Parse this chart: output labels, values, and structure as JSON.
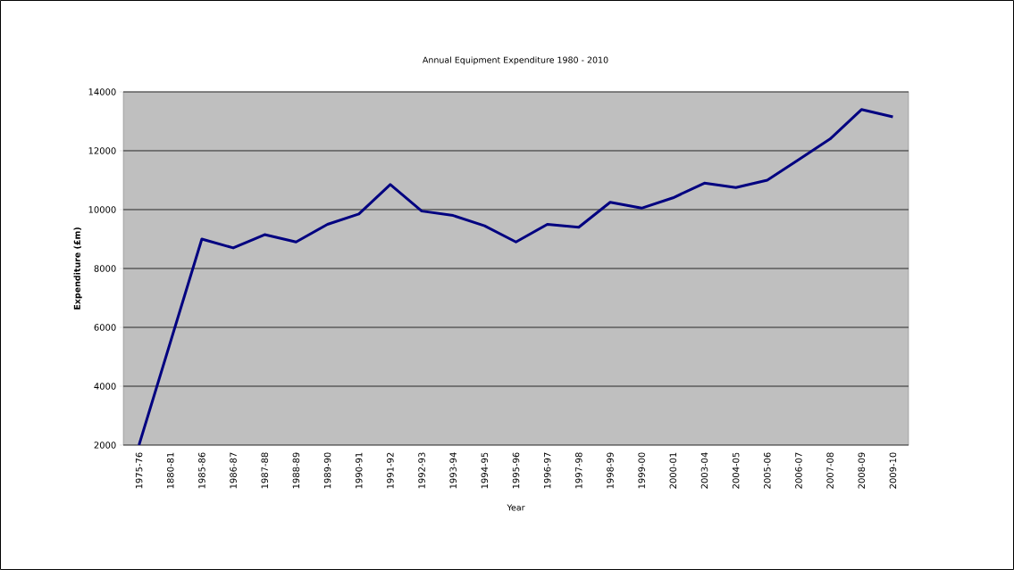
{
  "chart_data": {
    "type": "line",
    "title": "Annual Equipment Expenditure 1980 - 2010",
    "xlabel": "Year",
    "ylabel": "Expenditure (£m)",
    "categories": [
      "1975-76",
      "1880-81",
      "1985-86",
      "1986-87",
      "1987-88",
      "1988-89",
      "1989-90",
      "1990-91",
      "1991-92",
      "1992-93",
      "1993-94",
      "1994-95",
      "1995-96",
      "1996-97",
      "1997-98",
      "1998-99",
      "1999-00",
      "2000-01",
      "2003-04",
      "2004-05",
      "2005-06",
      "2006-07",
      "2007-08",
      "2008-09",
      "2009-10"
    ],
    "series": [
      {
        "color": "#000080",
        "values": [
          2000,
          5500,
          9000,
          8700,
          9150,
          8900,
          9500,
          9850,
          10850,
          9950,
          9800,
          9450,
          8900,
          9500,
          9400,
          10250,
          10050,
          10400,
          10900,
          10750,
          11000,
          11700,
          12400,
          13400,
          13150
        ]
      }
    ],
    "ylim": [
      2000,
      14000
    ],
    "yticks": [
      2000,
      4000,
      6000,
      8000,
      10000,
      12000,
      14000
    ],
    "grid": "y",
    "marker": "none",
    "line_style": "solid"
  }
}
